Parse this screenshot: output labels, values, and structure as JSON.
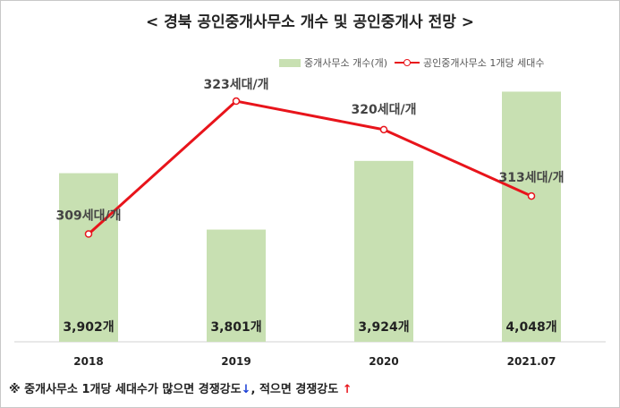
{
  "chart_data": {
    "type": "bar+line",
    "title": "< 경북  공인중개사무소 개수 및 공인중개사 전망 >",
    "categories": [
      "2018",
      "2019",
      "2020",
      "2021.07"
    ],
    "series": [
      {
        "name": "중개사무소 개수(개)",
        "type": "bar",
        "color": "#c8e0b2",
        "values": [
          3902,
          3801,
          3924,
          4048
        ],
        "labels": [
          "3,902개",
          "3,801개",
          "3,924개",
          "4,048개"
        ]
      },
      {
        "name": "공인중개사무소 1개당 세대수",
        "type": "line",
        "color": "#e8141b",
        "values": [
          309,
          323,
          320,
          313
        ],
        "labels": [
          "309세대/개",
          "323세대/개",
          "320세대/개",
          "313세대/개"
        ]
      }
    ],
    "bar_axis_range": [
      3600,
      4100
    ],
    "line_axis_range": [
      300,
      328
    ],
    "legend_position": "top-right",
    "grid": false
  },
  "footnote": {
    "prefix": "※ 중개사무소 1개당 세대수가 많으면 경쟁강도",
    "down_arrow": "↓",
    "middle": ", 적으면 경쟁강도 ",
    "up_arrow": "↑"
  }
}
